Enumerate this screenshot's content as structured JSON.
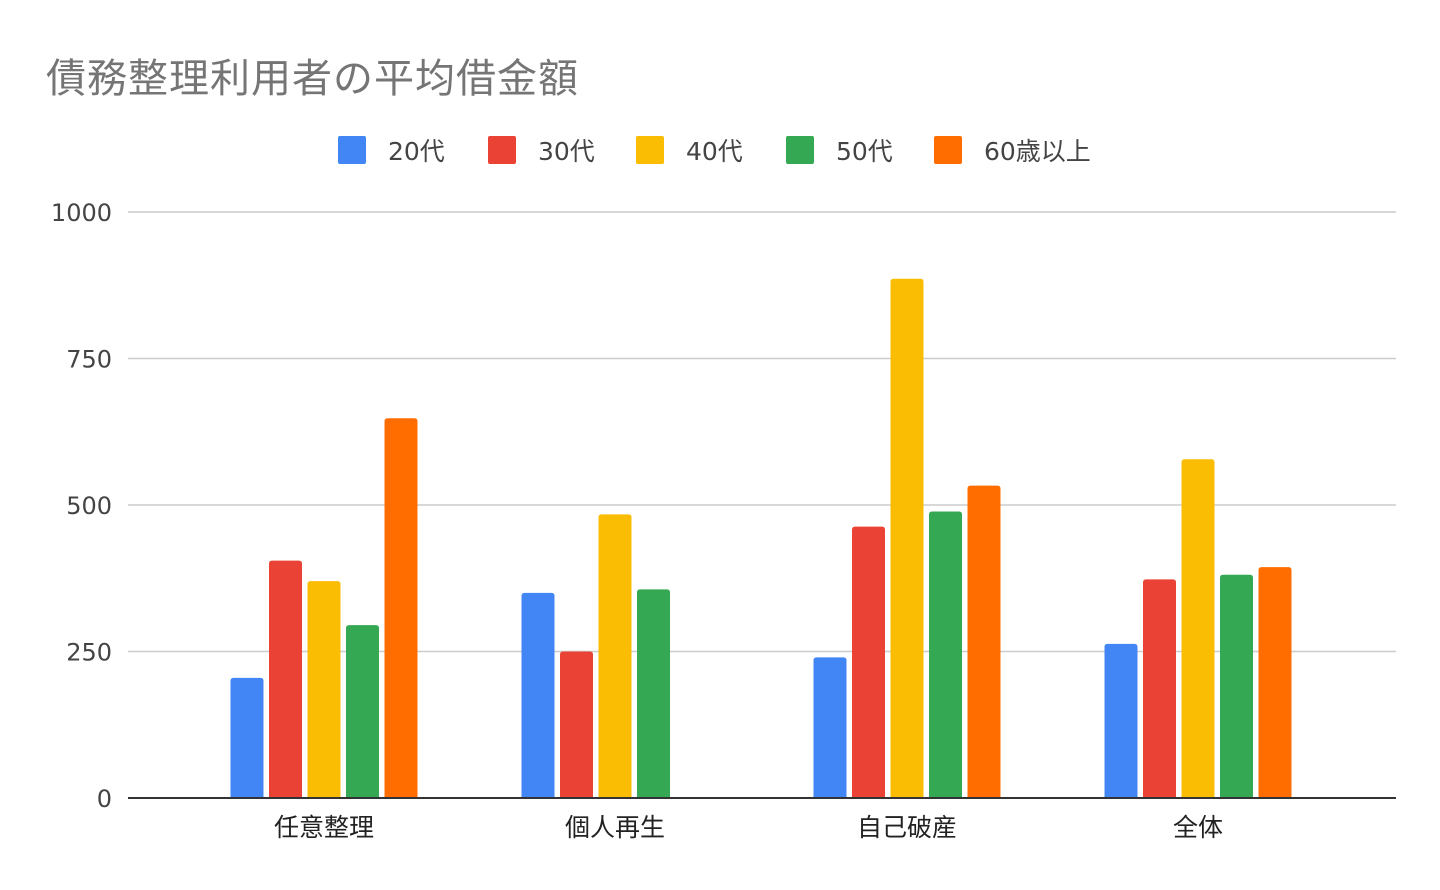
{
  "chart_data": {
    "type": "bar",
    "title": "債務整理利用者の平均借金額",
    "xlabel": "",
    "ylabel": "",
    "categories": [
      "任意整理",
      "個人再生",
      "自己破産",
      "全体"
    ],
    "series": [
      {
        "name": "20代",
        "color": "#4285F4",
        "values": [
          205,
          350,
          240,
          263
        ]
      },
      {
        "name": "30代",
        "color": "#EA4335",
        "values": [
          405,
          250,
          463,
          373
        ]
      },
      {
        "name": "40代",
        "color": "#FBBC04",
        "values": [
          370,
          484,
          886,
          578
        ]
      },
      {
        "name": "50代",
        "color": "#34A853",
        "values": [
          295,
          356,
          489,
          381
        ]
      },
      {
        "name": "60歳以上",
        "color": "#FF6D01",
        "values": [
          648,
          null,
          533,
          394
        ]
      }
    ],
    "ylim": [
      0,
      1000
    ],
    "yticks": [
      0,
      250,
      500,
      750,
      1000
    ],
    "grid": true,
    "legend_position": "top"
  }
}
